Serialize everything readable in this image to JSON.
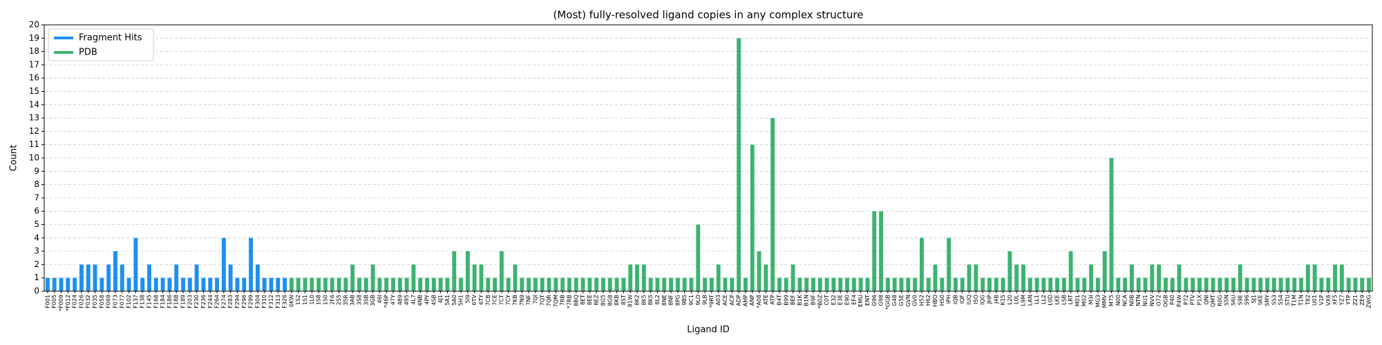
{
  "chart_data": {
    "type": "bar",
    "title": "(Most) fully-resolved ligand copies in any complex structure",
    "x_label": "Ligand ID",
    "y_label": "Count",
    "categories": [
      "F001",
      "F005",
      "*F009",
      "*F012",
      "F024",
      "F026",
      "F032",
      "F035",
      "F058",
      "F069",
      "F073",
      "F077",
      "F102",
      "F137",
      "F138",
      "F145",
      "F168",
      "F184",
      "F186",
      "F188",
      "F189",
      "F203",
      "F230",
      "F236",
      "F244",
      "F264",
      "F274",
      "F283",
      "F294",
      "F296",
      "F299",
      "F304",
      "F310",
      "F312",
      "F313",
      "F326",
      "0KW",
      "1S2",
      "1S1",
      "1L0",
      "1S8",
      "1S0",
      "2F6",
      "2S5",
      "35R",
      "3AB",
      "3S8",
      "3SB",
      "3GB",
      "46I",
      "*46P",
      "47Y",
      "489",
      "495",
      "4L7",
      "4NB",
      "4PY",
      "4SB",
      "4J1",
      "5A1",
      "5A0",
      "5H1",
      "5I9",
      "6TV",
      "6TY",
      "7CB",
      "7CE",
      "7CT",
      "7CY",
      "7KB",
      "7N9",
      "7NF",
      "7QI",
      "7QT",
      "7QR",
      "7QM",
      "7RB",
      "*7RB",
      "8BQ",
      "8ET",
      "8EE",
      "8EZ",
      "8G5",
      "8G8",
      "8KB",
      "8ST",
      "81W",
      "8K2",
      "8K5",
      "8KS",
      "8L2",
      "8NE",
      "8NF",
      "8PG",
      "9BS",
      "9C1",
      "9LO",
      "9LB",
      "*9RT",
      "A03",
      "ACE",
      "ACP",
      "ADP",
      "AMP",
      "ANP",
      "*A08",
      "ATE",
      "ATP",
      "B4T",
      "B99",
      "BEF",
      "B1K",
      "B1N",
      "B9F",
      "*B0Z",
      "C0T",
      "E32",
      "E3E",
      "E90",
      "EF4",
      "EMU",
      "ENT",
      "G96",
      "G98",
      "*GGB",
      "G48",
      "G5E",
      "GVN",
      "GV0",
      "H52",
      "H62",
      "HBO",
      "HS0",
      "IPH",
      "IQB",
      "IQF",
      "IUQ",
      "I5O",
      "IQG",
      "JHP",
      "J4B",
      "K1S",
      "L20",
      "L0L",
      "L9M",
      "LAN",
      "LL1",
      "LL2",
      "L0D",
      "LKE",
      "LSB",
      "LRT",
      "M01",
      "M02",
      "M3I",
      "MG3",
      "MMV",
      "M75",
      "N00",
      "NCA",
      "N0B",
      "NTN",
      "NU1",
      "NVV",
      "O72",
      "OGB",
      "P40",
      "P4W",
      "P72",
      "PTV",
      "P1X",
      "QNI",
      "QMT",
      "R0G",
      "S5N",
      "S6U",
      "S9E",
      "S96",
      "SJ1",
      "SKE",
      "SMY",
      "SS3",
      "SS4",
      "STU",
      "T1M",
      "T1N",
      "T82",
      "U01",
      "V1P",
      "VX6",
      "XF5",
      "YZ7",
      "YTP",
      "Z21",
      "ZE9",
      "ZWG"
    ],
    "series": [
      {
        "name": "Fragment Hits",
        "color": "#1e8ff0",
        "values": [
          1,
          1,
          1,
          1,
          1,
          2,
          2,
          2,
          1,
          2,
          3,
          2,
          1,
          4,
          1,
          2,
          1,
          1,
          1,
          2,
          1,
          1,
          2,
          1,
          1,
          1,
          4,
          2,
          1,
          1,
          4,
          2,
          1,
          1,
          1,
          1,
          null,
          null,
          null,
          null,
          null,
          null,
          null,
          null,
          null,
          null,
          null,
          null,
          null,
          null,
          null,
          null,
          null,
          null,
          null,
          null,
          null,
          null,
          null,
          null,
          null,
          null,
          null,
          null,
          null,
          null,
          null,
          null,
          null,
          null,
          null,
          null,
          null,
          null,
          null,
          null,
          null,
          null,
          null,
          null,
          null,
          null,
          null,
          null,
          null,
          null,
          null,
          null,
          null,
          null,
          null,
          null,
          null,
          null,
          null,
          null,
          null,
          null,
          null,
          null,
          null,
          null,
          null,
          null,
          null,
          null,
          null,
          null,
          null,
          null,
          null,
          null,
          null,
          null,
          null,
          null,
          null,
          null,
          null,
          null,
          null,
          null,
          null,
          null,
          null,
          null,
          null,
          null,
          null,
          null,
          null,
          null,
          null,
          null,
          null,
          null,
          null,
          null,
          null,
          null,
          null,
          null,
          null,
          null,
          null,
          null,
          null,
          null,
          null,
          null,
          null,
          null,
          null,
          null,
          null,
          null,
          null,
          null,
          null,
          null,
          null,
          null,
          null,
          null,
          null,
          null,
          null,
          null,
          null,
          null,
          null,
          null,
          null,
          null,
          null,
          null,
          null,
          null,
          null,
          null,
          null,
          null,
          null,
          null,
          null,
          null,
          null,
          null,
          null,
          null,
          null,
          null,
          null,
          null,
          null,
          null
        ]
      },
      {
        "name": "PDB",
        "color": "#3cb371",
        "values": [
          null,
          null,
          null,
          null,
          null,
          null,
          null,
          null,
          null,
          null,
          null,
          null,
          null,
          null,
          null,
          null,
          null,
          null,
          null,
          null,
          null,
          null,
          null,
          null,
          null,
          null,
          null,
          null,
          null,
          null,
          null,
          null,
          null,
          null,
          null,
          null,
          1,
          1,
          1,
          1,
          1,
          1,
          1,
          1,
          1,
          2,
          1,
          1,
          2,
          1,
          1,
          1,
          1,
          1,
          2,
          1,
          1,
          1,
          1,
          1,
          3,
          1,
          3,
          2,
          2,
          1,
          1,
          3,
          1,
          2,
          1,
          1,
          1,
          1,
          1,
          1,
          1,
          1,
          1,
          1,
          1,
          1,
          1,
          1,
          1,
          1,
          2,
          2,
          2,
          1,
          1,
          1,
          1,
          1,
          1,
          1,
          5,
          1,
          1,
          2,
          1,
          1,
          19,
          1,
          11,
          3,
          2,
          13,
          1,
          1,
          2,
          1,
          1,
          1,
          1,
          1,
          1,
          1,
          1,
          1,
          1,
          1,
          6,
          6,
          1,
          1,
          1,
          1,
          1,
          4,
          1,
          2,
          1,
          4,
          1,
          1,
          2,
          2,
          1,
          1,
          1,
          1,
          3,
          2,
          2,
          1,
          1,
          1,
          1,
          1,
          1,
          3,
          1,
          1,
          2,
          1,
          3,
          10,
          1,
          1,
          2,
          1,
          1,
          2,
          2,
          1,
          1,
          2,
          1,
          1,
          1,
          1,
          1,
          1,
          1,
          1,
          2,
          1,
          1,
          1,
          1,
          1,
          1,
          1,
          1,
          1,
          2,
          2,
          1,
          1,
          2,
          2,
          1,
          1,
          1,
          1
        ]
      }
    ],
    "ylim": [
      0,
      20
    ],
    "yticks": [
      0,
      1,
      2,
      3,
      4,
      5,
      6,
      7,
      8,
      9,
      10,
      11,
      12,
      13,
      14,
      15,
      16,
      17,
      18,
      19,
      20
    ],
    "grid": true,
    "legend": "upper-left"
  }
}
